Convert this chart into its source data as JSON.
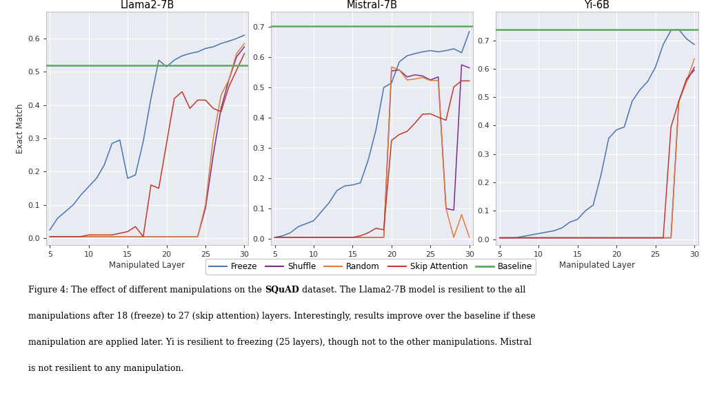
{
  "llama2_7b": {
    "title": "Llama2-7B",
    "baseline": 0.52,
    "ylim": [
      -0.02,
      0.68
    ],
    "yticks": [
      0.0,
      0.1,
      0.2,
      0.3,
      0.4,
      0.5,
      0.6
    ],
    "freeze_y": [
      0.025,
      0.06,
      0.08,
      0.1,
      0.13,
      0.155,
      0.18,
      0.22,
      0.285,
      0.295,
      0.18,
      0.19,
      0.29,
      0.42,
      0.535,
      0.515,
      0.535,
      0.548,
      0.555,
      0.56,
      0.57,
      0.575,
      0.585,
      0.592,
      0.6,
      0.61
    ],
    "shuffle_y": [
      0.005,
      0.005,
      0.005,
      0.005,
      0.005,
      0.005,
      0.005,
      0.005,
      0.005,
      0.005,
      0.005,
      0.005,
      0.005,
      0.005,
      0.005,
      0.005,
      0.005,
      0.005,
      0.005,
      0.005,
      0.09,
      0.25,
      0.39,
      0.475,
      0.545,
      0.575
    ],
    "random_y": [
      0.005,
      0.005,
      0.005,
      0.005,
      0.005,
      0.005,
      0.005,
      0.005,
      0.005,
      0.005,
      0.005,
      0.005,
      0.005,
      0.005,
      0.005,
      0.005,
      0.005,
      0.005,
      0.005,
      0.005,
      0.1,
      0.3,
      0.43,
      0.475,
      0.555,
      0.585
    ],
    "skip_att_y": [
      0.005,
      0.005,
      0.005,
      0.005,
      0.005,
      0.01,
      0.01,
      0.01,
      0.01,
      0.015,
      0.02,
      0.035,
      0.005,
      0.16,
      0.15,
      0.285,
      0.42,
      0.44,
      0.39,
      0.415,
      0.415,
      0.39,
      0.38,
      0.455,
      0.505,
      0.555
    ]
  },
  "mistral_7b": {
    "title": "Mistral-7B",
    "baseline": 0.703,
    "ylim": [
      -0.02,
      0.75
    ],
    "yticks": [
      0.0,
      0.1,
      0.2,
      0.3,
      0.4,
      0.5,
      0.6,
      0.7
    ],
    "freeze_y": [
      0.005,
      0.01,
      0.02,
      0.04,
      0.05,
      0.06,
      0.09,
      0.12,
      0.16,
      0.175,
      0.178,
      0.185,
      0.26,
      0.36,
      0.5,
      0.515,
      0.585,
      0.605,
      0.612,
      0.618,
      0.622,
      0.618,
      0.622,
      0.628,
      0.615,
      0.685
    ],
    "shuffle_y": [
      0.005,
      0.005,
      0.005,
      0.005,
      0.005,
      0.005,
      0.005,
      0.005,
      0.005,
      0.005,
      0.005,
      0.005,
      0.005,
      0.005,
      0.005,
      0.555,
      0.558,
      0.535,
      0.542,
      0.538,
      0.525,
      0.535,
      0.1,
      0.095,
      0.575,
      0.565
    ],
    "random_y": [
      0.005,
      0.005,
      0.005,
      0.005,
      0.005,
      0.005,
      0.005,
      0.005,
      0.005,
      0.005,
      0.005,
      0.005,
      0.005,
      0.005,
      0.005,
      0.568,
      0.558,
      0.525,
      0.528,
      0.533,
      0.523,
      0.523,
      0.1,
      0.005,
      0.08,
      0.005
    ],
    "skip_att_y": [
      0.005,
      0.005,
      0.005,
      0.005,
      0.005,
      0.005,
      0.005,
      0.005,
      0.005,
      0.005,
      0.005,
      0.01,
      0.02,
      0.035,
      0.03,
      0.325,
      0.345,
      0.355,
      0.382,
      0.412,
      0.413,
      0.402,
      0.392,
      0.502,
      0.522,
      0.522
    ]
  },
  "yi_6b": {
    "title": "Yi-6B",
    "baseline": 0.737,
    "ylim": [
      -0.02,
      0.8
    ],
    "yticks": [
      0.0,
      0.1,
      0.2,
      0.3,
      0.4,
      0.5,
      0.6,
      0.7
    ],
    "freeze_y": [
      0.005,
      0.005,
      0.005,
      0.01,
      0.015,
      0.02,
      0.025,
      0.03,
      0.04,
      0.06,
      0.07,
      0.1,
      0.12,
      0.225,
      0.355,
      0.385,
      0.395,
      0.485,
      0.525,
      0.555,
      0.605,
      0.685,
      0.735,
      0.738,
      0.705,
      0.685
    ],
    "shuffle_y": [
      0.005,
      0.005,
      0.005,
      0.005,
      0.005,
      0.005,
      0.005,
      0.005,
      0.005,
      0.005,
      0.005,
      0.005,
      0.005,
      0.005,
      0.005,
      0.005,
      0.005,
      0.005,
      0.005,
      0.005,
      0.005,
      0.005,
      0.005,
      0.485,
      0.555,
      0.605
    ],
    "random_y": [
      0.005,
      0.005,
      0.005,
      0.005,
      0.005,
      0.005,
      0.005,
      0.005,
      0.005,
      0.005,
      0.005,
      0.005,
      0.005,
      0.005,
      0.005,
      0.005,
      0.005,
      0.005,
      0.005,
      0.005,
      0.005,
      0.005,
      0.005,
      0.485,
      0.555,
      0.635
    ],
    "skip_att_y": [
      0.005,
      0.005,
      0.005,
      0.005,
      0.005,
      0.005,
      0.005,
      0.005,
      0.005,
      0.005,
      0.005,
      0.005,
      0.005,
      0.005,
      0.005,
      0.005,
      0.005,
      0.005,
      0.005,
      0.005,
      0.005,
      0.005,
      0.395,
      0.485,
      0.565,
      0.595
    ]
  },
  "x": [
    5,
    6,
    7,
    8,
    9,
    10,
    11,
    12,
    13,
    14,
    15,
    16,
    17,
    18,
    19,
    20,
    21,
    22,
    23,
    24,
    25,
    26,
    27,
    28,
    29,
    30
  ],
  "colors": {
    "freeze": "#4C72B0",
    "shuffle": "#7B2D8B",
    "random": "#E07B39",
    "skip_att": "#C0392B",
    "baseline": "#5CA85C"
  },
  "xlabel": "Manipulated Layer",
  "ylabel": "Exact Match",
  "bg_color": "#E8EBF2",
  "figure_bg": "#FFFFFF"
}
